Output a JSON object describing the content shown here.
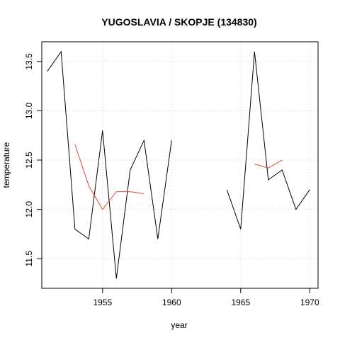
{
  "chart_data": {
    "type": "line",
    "title": "YUGOSLAVIA / SKOPJE (134830)",
    "xlabel": "year",
    "ylabel": "temperature",
    "xlim": [
      1950.6,
      1970.6
    ],
    "ylim": [
      11.2,
      13.7
    ],
    "x_ticks": [
      1955,
      1960,
      1965,
      1970
    ],
    "y_ticks": [
      11.5,
      12.0,
      12.5,
      13.0,
      13.5
    ],
    "x_tick_labels": [
      "1955",
      "1960",
      "1965",
      "1970"
    ],
    "y_tick_labels": [
      "11.5",
      "12.0",
      "12.5",
      "13.0",
      "13.5"
    ],
    "grid": true,
    "series": [
      {
        "color": "#000000",
        "x": [
          1951,
          1952,
          1953,
          1954,
          1955,
          1956,
          1957,
          1958,
          1959,
          1960,
          1961,
          1962,
          1963,
          1964,
          1965,
          1966,
          1967,
          1968,
          1969,
          1970
        ],
        "y": [
          13.4,
          13.6,
          11.8,
          11.7,
          12.8,
          11.3,
          12.4,
          12.7,
          11.7,
          12.7,
          null,
          null,
          null,
          12.2,
          11.8,
          13.6,
          12.3,
          12.4,
          12.0,
          12.2
        ]
      },
      {
        "color": "#e8432d",
        "x": [
          1953,
          1954,
          1955,
          1956,
          1957,
          1958,
          1959,
          1960,
          1961,
          1962,
          1963,
          1964,
          1965,
          1966,
          1967,
          1968
        ],
        "y": [
          12.66,
          12.24,
          12.0,
          12.18,
          12.18,
          12.16,
          null,
          null,
          null,
          null,
          null,
          null,
          null,
          12.46,
          12.42,
          12.5
        ]
      }
    ]
  }
}
